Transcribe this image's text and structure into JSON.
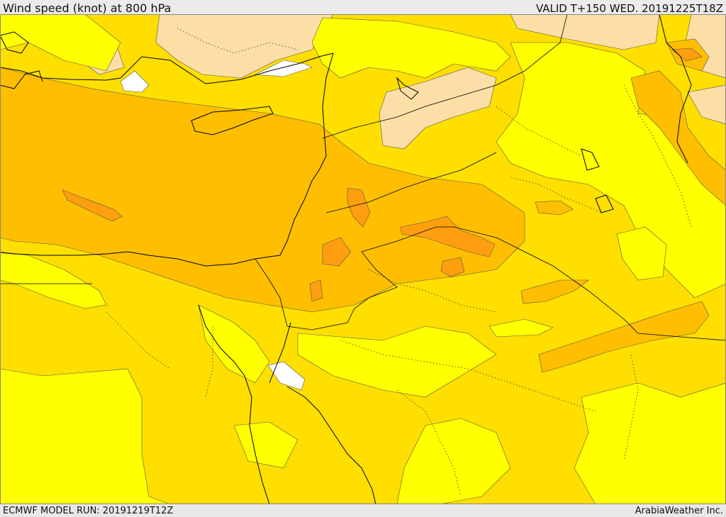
{
  "header": {
    "title": "Wind speed (knot) at 800 hPa",
    "valid": "VALID T+150 WED. 20191225T18Z"
  },
  "footer": {
    "model_run": "ECMWF MODEL RUN: 20191219T12Z",
    "credit": "ArabiaWeather Inc."
  },
  "colors": {
    "band_lightest": "#fcdfa6",
    "band_yellow": "#ffff00",
    "band_gold": "#ffdf00",
    "band_amber": "#ffbf00",
    "band_orange": "#ff9f10",
    "no_data": "#ffffff"
  }
}
